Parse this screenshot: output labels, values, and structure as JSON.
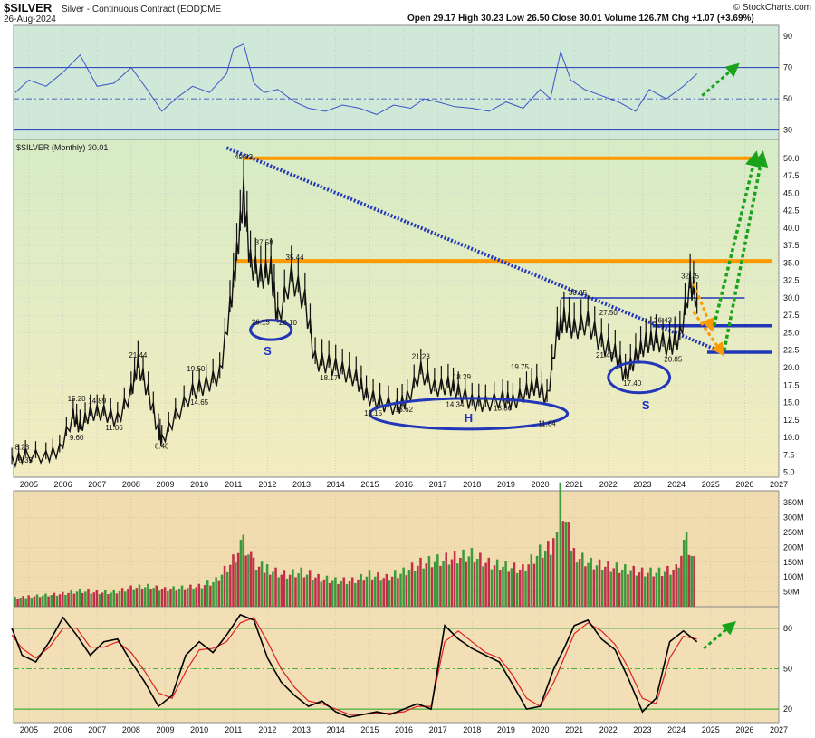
{
  "header": {
    "symbol": "$SILVER",
    "description": "Silver - Continuous Contract (EOD)",
    "exchange": "CME",
    "date": "26-Aug-2024",
    "ohlc": "Open 29.17  High 30.23  Low 26.50  Close 30.01  Volume 126.7M  Chg +1.07 (+3.69%)",
    "watermark": "© StockCharts.com",
    "price_legend": "$SILVER (Monthly) 30.01"
  },
  "colors": {
    "rsi_bg": "#cfe8d8",
    "price_bg_top": "#d6ecc6",
    "price_bg_bottom": "#f3ecc0",
    "volume_bg": "#f0dcae",
    "stoch_bg": "#f2dfb6",
    "line_blue": "#2236b8",
    "orange": "#ff9900",
    "green_arrow": "#1aa31a",
    "vol_up": "#3c9a3c",
    "vol_down": "#c0304a",
    "stoch_k": "#000000",
    "stoch_d": "#e02020"
  },
  "chart_data": [
    {
      "type": "line",
      "panel": "rsi",
      "y_ticks": [
        "90",
        "70",
        "50",
        "30"
      ],
      "ylim": [
        24,
        97
      ],
      "reference_lines": [
        70,
        50,
        30
      ],
      "x": [
        2004.6,
        2005.0,
        2005.5,
        2006.0,
        2006.5,
        2007.0,
        2007.5,
        2008.0,
        2008.5,
        2008.9,
        2009.3,
        2009.8,
        2010.3,
        2010.8,
        2011.0,
        2011.3,
        2011.6,
        2011.9,
        2012.3,
        2012.8,
        2013.2,
        2013.7,
        2014.2,
        2014.7,
        2015.2,
        2015.7,
        2016.2,
        2016.6,
        2017.0,
        2017.5,
        2018.0,
        2018.5,
        2019.0,
        2019.5,
        2020.0,
        2020.3,
        2020.6,
        2020.9,
        2021.3,
        2021.8,
        2022.3,
        2022.8,
        2023.2,
        2023.7,
        2024.2,
        2024.6
      ],
      "y": [
        54,
        62,
        58,
        67,
        78,
        58,
        60,
        70,
        55,
        42,
        50,
        58,
        54,
        66,
        82,
        85,
        60,
        54,
        56,
        48,
        44,
        42,
        46,
        44,
        40,
        46,
        44,
        50,
        48,
        45,
        44,
        42,
        48,
        44,
        56,
        50,
        80,
        62,
        56,
        52,
        48,
        42,
        56,
        50,
        58,
        66
      ]
    },
    {
      "type": "line",
      "panel": "price",
      "legend": "$SILVER (Monthly) 30.01",
      "y_ticks": [
        "50.0",
        "47.5",
        "45.0",
        "42.5",
        "40.0",
        "37.5",
        "35.0",
        "32.5",
        "30.0",
        "27.5",
        "25.0",
        "22.5",
        "20.0",
        "17.5",
        "15.0",
        "12.5",
        "10.0",
        "7.5",
        "5.0"
      ],
      "ylim": [
        4.3,
        52.7
      ],
      "x_ticks": [
        "2005",
        "2006",
        "2007",
        "2008",
        "2009",
        "2010",
        "2011",
        "2012",
        "2013",
        "2014",
        "2015",
        "2016",
        "2017",
        "2018",
        "2019",
        "2020",
        "2021",
        "2022",
        "2023",
        "2024",
        "2025",
        "2026",
        "2027"
      ],
      "x": [
        2004.5,
        2004.9,
        2005.5,
        2005.9,
        2006.3,
        2006.5,
        2006.8,
        2007.2,
        2007.6,
        2008.0,
        2008.2,
        2008.5,
        2008.8,
        2008.9,
        2009.3,
        2009.8,
        2010.2,
        2010.6,
        2010.9,
        2011.1,
        2011.3,
        2011.5,
        2011.8,
        2012.1,
        2012.3,
        2012.7,
        2013.1,
        2013.4,
        2013.8,
        2014.2,
        2014.6,
        2014.9,
        2015.3,
        2015.8,
        2016.1,
        2016.5,
        2016.9,
        2017.3,
        2017.6,
        2018.0,
        2018.4,
        2018.9,
        2019.2,
        2019.6,
        2019.9,
        2020.2,
        2020.5,
        2020.7,
        2021.0,
        2021.4,
        2021.8,
        2022.2,
        2022.5,
        2022.8,
        2023.1,
        2023.4,
        2023.8,
        2024.1,
        2024.4,
        2024.6
      ],
      "y": [
        6.5,
        7.5,
        7.2,
        8.2,
        13.0,
        11.5,
        13.5,
        13.5,
        12.5,
        16.5,
        20.5,
        16.5,
        11.0,
        9.5,
        13.0,
        16.5,
        17.5,
        19.0,
        28.5,
        36.0,
        45.0,
        35.0,
        33.0,
        34.0,
        27.0,
        33.0,
        29.5,
        21.0,
        20.5,
        19.5,
        18.5,
        16.0,
        15.0,
        14.3,
        15.5,
        19.5,
        17.0,
        17.5,
        16.5,
        15.0,
        14.8,
        15.5,
        15.0,
        16.5,
        17.5,
        15.5,
        25.0,
        27.0,
        25.5,
        26.5,
        23.5,
        22.0,
        18.8,
        21.5,
        23.5,
        24.0,
        23.0,
        24.5,
        32.0,
        30.01
      ],
      "point_labels": [
        {
          "x": 2004.8,
          "y": 8.23,
          "text": "8.23"
        },
        {
          "x": 2004.9,
          "y": 6.35,
          "text": "6.35"
        },
        {
          "x": 2006.4,
          "y": 15.2,
          "text": "15.20"
        },
        {
          "x": 2006.4,
          "y": 9.6,
          "text": "9.60"
        },
        {
          "x": 2007.0,
          "y": 14.89,
          "text": "14.89"
        },
        {
          "x": 2007.5,
          "y": 11.06,
          "text": "11.06"
        },
        {
          "x": 2008.2,
          "y": 21.44,
          "text": "21.44"
        },
        {
          "x": 2008.9,
          "y": 8.4,
          "text": "8.40"
        },
        {
          "x": 2009.9,
          "y": 19.5,
          "text": "19.50"
        },
        {
          "x": 2010.0,
          "y": 14.65,
          "text": "14.65"
        },
        {
          "x": 2011.3,
          "y": 49.82,
          "text": "49.82"
        },
        {
          "x": 2011.9,
          "y": 37.58,
          "text": "37.58"
        },
        {
          "x": 2012.8,
          "y": 35.44,
          "text": "35.44"
        },
        {
          "x": 2011.8,
          "y": 26.15,
          "text": "26.15"
        },
        {
          "x": 2012.6,
          "y": 26.1,
          "text": "26.10"
        },
        {
          "x": 2013.8,
          "y": 18.17,
          "text": "18.17"
        },
        {
          "x": 2015.1,
          "y": 13.15,
          "text": "13.15"
        },
        {
          "x": 2016.0,
          "y": 13.62,
          "text": "13.62"
        },
        {
          "x": 2016.5,
          "y": 21.23,
          "text": "21.23"
        },
        {
          "x": 2017.7,
          "y": 18.29,
          "text": "18.29"
        },
        {
          "x": 2017.5,
          "y": 14.34,
          "text": "14.34"
        },
        {
          "x": 2018.9,
          "y": 13.86,
          "text": "13.86"
        },
        {
          "x": 2019.4,
          "y": 19.75,
          "text": "19.75"
        },
        {
          "x": 2020.2,
          "y": 11.64,
          "text": "11.64"
        },
        {
          "x": 2021.1,
          "y": 30.35,
          "text": "30.35"
        },
        {
          "x": 2022.0,
          "y": 27.5,
          "text": "27.50"
        },
        {
          "x": 2021.9,
          "y": 21.41,
          "text": "21.41"
        },
        {
          "x": 2022.7,
          "y": 17.4,
          "text": "17.40"
        },
        {
          "x": 2023.6,
          "y": 26.43,
          "text": "26.43"
        },
        {
          "x": 2023.9,
          "y": 20.85,
          "text": "20.85"
        },
        {
          "x": 2024.4,
          "y": 32.75,
          "text": "32.75"
        }
      ],
      "pattern_labels": [
        {
          "x": 2012.0,
          "y": 21.8,
          "text": "S"
        },
        {
          "x": 2017.9,
          "y": 12.2,
          "text": "H"
        },
        {
          "x": 2023.1,
          "y": 14.0,
          "text": "S"
        }
      ],
      "ellipses": [
        {
          "cx": 2012.1,
          "cy": 25.4,
          "rx": 0.6,
          "ry": 1.4
        },
        {
          "cx": 2017.9,
          "cy": 13.4,
          "rx": 2.9,
          "ry": 2.2
        },
        {
          "cx": 2022.9,
          "cy": 18.6,
          "rx": 0.9,
          "ry": 2.2
        }
      ],
      "horizontal_levels": [
        {
          "y": 50.0,
          "x0": 2011.3,
          "x1": 2026.5,
          "color": "orange"
        },
        {
          "y": 35.3,
          "x0": 2011.1,
          "x1": 2026.8,
          "color": "orange"
        },
        {
          "y": 30.0,
          "x0": 2020.6,
          "x1": 2026.0,
          "color": "blue_thin"
        },
        {
          "y": 26.0,
          "x0": 2023.3,
          "x1": 2026.8,
          "color": "blue"
        },
        {
          "y": 22.2,
          "x0": 2024.9,
          "x1": 2026.8,
          "color": "blue"
        }
      ],
      "trendline": {
        "x0": 2010.8,
        "y0": 51.5,
        "x1": 2025.2,
        "y1": 22.5
      },
      "projection_arrows": [
        {
          "points": [
            [
              2024.5,
              32.0
            ],
            [
              2025.0,
              26.0
            ]
          ],
          "color": "orange"
        },
        {
          "points": [
            [
              2024.5,
              28.0
            ],
            [
              2025.3,
              22.4
            ]
          ],
          "color": "orange"
        },
        {
          "points": [
            [
              2025.1,
              26.0
            ],
            [
              2026.3,
              50.0
            ]
          ],
          "color": "green"
        },
        {
          "points": [
            [
              2025.4,
              22.4
            ],
            [
              2026.5,
              50.0
            ]
          ],
          "color": "green"
        }
      ]
    },
    {
      "type": "bar",
      "panel": "volume",
      "y_ticks": [
        "350M",
        "300M",
        "250M",
        "200M",
        "150M",
        "100M",
        "50M"
      ],
      "ylim": [
        0,
        390
      ],
      "x": [
        2004.6,
        2005.0,
        2005.5,
        2006.0,
        2006.5,
        2007.0,
        2007.5,
        2008.0,
        2008.5,
        2009.0,
        2009.5,
        2010.0,
        2010.5,
        2011.0,
        2011.3,
        2011.6,
        2012.0,
        2012.5,
        2013.0,
        2013.5,
        2014.0,
        2014.5,
        2015.0,
        2015.5,
        2016.0,
        2016.5,
        2017.0,
        2017.5,
        2018.0,
        2018.5,
        2019.0,
        2019.5,
        2020.0,
        2020.4,
        2020.6,
        2021.0,
        2021.5,
        2022.0,
        2022.5,
        2023.0,
        2023.5,
        2024.0,
        2024.3,
        2024.6
      ],
      "values": [
        30,
        35,
        40,
        45,
        55,
        50,
        50,
        65,
        70,
        60,
        65,
        70,
        90,
        160,
        220,
        150,
        130,
        110,
        120,
        100,
        90,
        90,
        110,
        100,
        120,
        150,
        160,
        170,
        180,
        150,
        140,
        130,
        190,
        210,
        380,
        180,
        150,
        140,
        130,
        120,
        120,
        130,
        230,
        130
      ]
    },
    {
      "type": "line",
      "panel": "stochastic",
      "y_ticks": [
        "80",
        "50",
        "20"
      ],
      "ylim": [
        10,
        96
      ],
      "reference_lines": [
        80,
        50,
        20
      ],
      "series": [
        {
          "x": [
            2004.5,
            2004.8,
            2005.2,
            2005.6,
            2006.0,
            2006.4,
            2006.8,
            2007.2,
            2007.6,
            2008.0,
            2008.4,
            2008.8,
            2009.2,
            2009.6,
            2010.0,
            2010.4,
            2010.8,
            2011.2,
            2011.6,
            2012.0,
            2012.4,
            2012.8,
            2013.2,
            2013.6,
            2014.0,
            2014.4,
            2014.8,
            2015.2,
            2015.6,
            2016.0,
            2016.4,
            2016.8,
            2017.2,
            2017.6,
            2018.0,
            2018.4,
            2018.8,
            2019.2,
            2019.6,
            2020.0,
            2020.4,
            2020.7,
            2021.0,
            2021.4,
            2021.8,
            2022.2,
            2022.6,
            2023.0,
            2023.4,
            2023.8,
            2024.2,
            2024.6
          ],
          "y": [
            80,
            60,
            55,
            70,
            88,
            75,
            60,
            70,
            72,
            55,
            40,
            22,
            30,
            60,
            70,
            62,
            75,
            90,
            86,
            58,
            40,
            30,
            22,
            26,
            18,
            14,
            16,
            18,
            16,
            20,
            24,
            20,
            82,
            72,
            65,
            60,
            55,
            38,
            20,
            22,
            50,
            65,
            82,
            86,
            72,
            64,
            42,
            18,
            28,
            70,
            78,
            70
          ]
        },
        {
          "x": [
            2004.5,
            2004.8,
            2005.2,
            2005.6,
            2006.0,
            2006.4,
            2006.8,
            2007.2,
            2007.6,
            2008.0,
            2008.4,
            2008.8,
            2009.2,
            2009.6,
            2010.0,
            2010.4,
            2010.8,
            2011.2,
            2011.6,
            2012.0,
            2012.4,
            2012.8,
            2013.2,
            2013.6,
            2014.0,
            2014.4,
            2014.8,
            2015.2,
            2015.6,
            2016.0,
            2016.4,
            2016.8,
            2017.2,
            2017.6,
            2018.0,
            2018.4,
            2018.8,
            2019.2,
            2019.6,
            2020.0,
            2020.4,
            2020.7,
            2021.0,
            2021.4,
            2021.8,
            2022.2,
            2022.6,
            2023.0,
            2023.4,
            2023.8,
            2024.2,
            2024.6
          ],
          "y": [
            75,
            65,
            58,
            66,
            80,
            80,
            66,
            66,
            70,
            62,
            48,
            32,
            28,
            48,
            64,
            65,
            70,
            84,
            88,
            70,
            50,
            36,
            26,
            24,
            20,
            16,
            16,
            17,
            17,
            18,
            22,
            22,
            70,
            78,
            70,
            62,
            58,
            45,
            28,
            22,
            40,
            58,
            76,
            84,
            78,
            68,
            50,
            28,
            24,
            58,
            74,
            72
          ]
        }
      ]
    }
  ]
}
